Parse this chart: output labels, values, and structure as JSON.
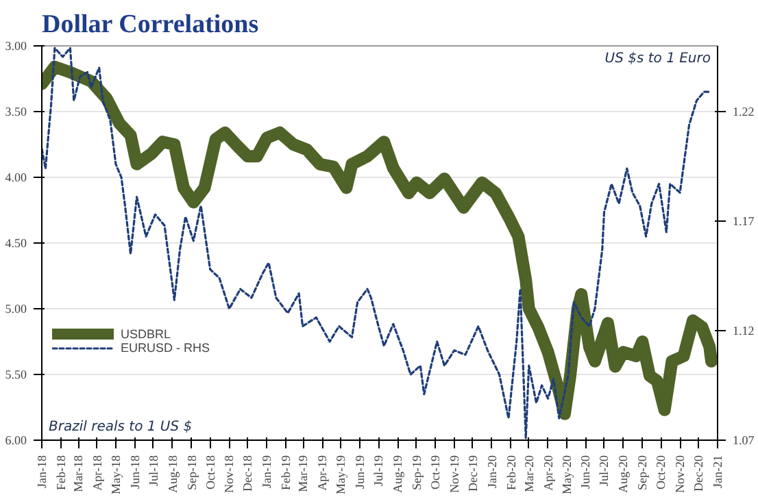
{
  "chart_data": {
    "type": "line",
    "title": "Dollar Correlations",
    "annotations": [
      "Brazil reals to 1 US $",
      "US $s to 1 Euro"
    ],
    "xlim": [
      "2018-01-01",
      "2021-01-01"
    ],
    "xticks": [
      {
        "value": "2018-01-01",
        "label": "Jan-18"
      },
      {
        "value": "2018-02-01",
        "label": "Feb-18"
      },
      {
        "value": "2018-03-01",
        "label": "Mar-18"
      },
      {
        "value": "2018-04-01",
        "label": "Apr-18"
      },
      {
        "value": "2018-05-01",
        "label": "May-18"
      },
      {
        "value": "2018-06-01",
        "label": "Jun-18"
      },
      {
        "value": "2018-07-01",
        "label": "Jul-18"
      },
      {
        "value": "2018-08-01",
        "label": "Aug-18"
      },
      {
        "value": "2018-09-01",
        "label": "Sep-18"
      },
      {
        "value": "2018-10-01",
        "label": "Oct-18"
      },
      {
        "value": "2018-11-01",
        "label": "Nov-18"
      },
      {
        "value": "2018-12-01",
        "label": "Dec-18"
      },
      {
        "value": "2019-01-01",
        "label": "Jan-19"
      },
      {
        "value": "2019-02-01",
        "label": "Feb-19"
      },
      {
        "value": "2019-03-01",
        "label": "Mar-19"
      },
      {
        "value": "2019-04-01",
        "label": "Apr-19"
      },
      {
        "value": "2019-05-01",
        "label": "May-19"
      },
      {
        "value": "2019-06-01",
        "label": "Jun-19"
      },
      {
        "value": "2019-07-01",
        "label": "Jul-19"
      },
      {
        "value": "2019-08-01",
        "label": "Aug-19"
      },
      {
        "value": "2019-09-01",
        "label": "Sep-19"
      },
      {
        "value": "2019-10-01",
        "label": "Oct-19"
      },
      {
        "value": "2019-11-01",
        "label": "Nov-19"
      },
      {
        "value": "2019-12-01",
        "label": "Dec-19"
      },
      {
        "value": "2020-01-01",
        "label": "Jan-20"
      },
      {
        "value": "2020-02-01",
        "label": "Feb-20"
      },
      {
        "value": "2020-03-01",
        "label": "Mar-20"
      },
      {
        "value": "2020-04-01",
        "label": "Apr-20"
      },
      {
        "value": "2020-05-01",
        "label": "May-20"
      },
      {
        "value": "2020-06-01",
        "label": "Jun-20"
      },
      {
        "value": "2020-07-01",
        "label": "Jul-20"
      },
      {
        "value": "2020-08-01",
        "label": "Aug-20"
      },
      {
        "value": "2020-09-01",
        "label": "Sep-20"
      },
      {
        "value": "2020-10-01",
        "label": "Oct-20"
      },
      {
        "value": "2020-11-01",
        "label": "Nov-20"
      },
      {
        "value": "2020-12-01",
        "label": "Dec-20"
      },
      {
        "value": "2021-01-01",
        "label": "Jan-21"
      }
    ],
    "ylim": [
      6.0,
      3.0
    ],
    "yticks": [
      {
        "value": 3.0,
        "label": "3.00"
      },
      {
        "value": 3.5,
        "label": "3.50"
      },
      {
        "value": 4.0,
        "label": "4.00"
      },
      {
        "value": 4.5,
        "label": "4.50"
      },
      {
        "value": 5.0,
        "label": "5.00"
      },
      {
        "value": 5.5,
        "label": "5.50"
      },
      {
        "value": 6.0,
        "label": "6.00"
      }
    ],
    "y2lim": [
      1.07,
      1.25
    ],
    "y2ticks": [
      1.07,
      1.12,
      1.17,
      1.22
    ],
    "grid": "y",
    "legend": "left",
    "series": [
      {
        "name": "USDBRL",
        "color": "#4f6228",
        "line_style": "solid",
        "x": [
          "2018-01-01",
          "2018-01-22",
          "2018-02-16",
          "2018-03-22",
          "2018-04-16",
          "2018-05-07",
          "2018-05-25",
          "2018-06-04",
          "2018-06-28",
          "2018-07-16",
          "2018-08-04",
          "2018-08-19",
          "2018-09-04",
          "2018-09-22",
          "2018-10-10",
          "2018-10-25",
          "2018-11-16",
          "2018-12-01",
          "2018-12-16",
          "2019-01-01",
          "2019-01-22",
          "2019-02-13",
          "2019-03-07",
          "2019-03-28",
          "2019-04-19",
          "2019-05-10",
          "2019-05-19",
          "2019-06-13",
          "2019-07-10",
          "2019-07-25",
          "2019-08-19",
          "2019-09-01",
          "2019-09-22",
          "2019-10-16",
          "2019-11-16",
          "2019-12-16",
          "2020-01-07",
          "2020-01-28",
          "2020-02-13",
          "2020-02-25",
          "2020-03-01",
          "2020-03-16",
          "2020-04-01",
          "2020-04-16",
          "2020-04-28",
          "2020-05-07",
          "2020-05-19",
          "2020-05-25",
          "2020-06-07",
          "2020-06-16",
          "2020-07-07",
          "2020-07-19",
          "2020-08-01",
          "2020-08-22",
          "2020-09-01",
          "2020-09-13",
          "2020-09-25",
          "2020-10-07",
          "2020-10-19",
          "2020-11-07",
          "2020-11-22",
          "2020-12-07",
          "2020-12-19",
          "2020-12-22"
        ],
        "values": [
          3.29,
          3.16,
          3.2,
          3.27,
          3.4,
          3.59,
          3.68,
          3.9,
          3.82,
          3.73,
          3.75,
          4.08,
          4.19,
          4.08,
          3.71,
          3.66,
          3.77,
          3.84,
          3.84,
          3.7,
          3.66,
          3.75,
          3.79,
          3.9,
          3.92,
          4.08,
          3.9,
          3.84,
          3.73,
          3.93,
          4.12,
          4.04,
          4.12,
          4.01,
          4.23,
          4.04,
          4.12,
          4.3,
          4.45,
          4.78,
          5.0,
          5.14,
          5.33,
          5.58,
          5.8,
          5.51,
          5.0,
          4.89,
          5.29,
          5.4,
          5.11,
          5.44,
          5.33,
          5.36,
          5.25,
          5.51,
          5.55,
          5.77,
          5.4,
          5.36,
          5.09,
          5.14,
          5.29,
          5.4
        ]
      },
      {
        "name": "EURUSD - RHS",
        "color": "#1f3d7a",
        "line_style": "dashed",
        "axis": "y2",
        "x": [
          "2018-01-01",
          "2018-01-07",
          "2018-01-16",
          "2018-01-22",
          "2018-02-04",
          "2018-02-16",
          "2018-02-22",
          "2018-03-04",
          "2018-03-16",
          "2018-03-22",
          "2018-04-04",
          "2018-04-10",
          "2018-04-22",
          "2018-05-01",
          "2018-05-10",
          "2018-05-16",
          "2018-05-25",
          "2018-06-04",
          "2018-06-19",
          "2018-07-04",
          "2018-07-19",
          "2018-08-04",
          "2018-08-13",
          "2018-08-22",
          "2018-09-04",
          "2018-09-16",
          "2018-10-01",
          "2018-10-16",
          "2018-11-01",
          "2018-11-19",
          "2018-12-07",
          "2018-12-25",
          "2019-01-04",
          "2019-01-16",
          "2019-02-04",
          "2019-02-22",
          "2019-02-28",
          "2019-03-22",
          "2019-04-13",
          "2019-04-28",
          "2019-05-19",
          "2019-05-28",
          "2019-06-13",
          "2019-06-19",
          "2019-07-01",
          "2019-07-10",
          "2019-07-25",
          "2019-08-10",
          "2019-08-22",
          "2019-09-07",
          "2019-09-13",
          "2019-10-04",
          "2019-10-16",
          "2019-11-01",
          "2019-11-19",
          "2019-12-10",
          "2019-12-25",
          "2020-01-13",
          "2020-01-28",
          "2020-02-10",
          "2020-02-16",
          "2020-02-25",
          "2020-03-01",
          "2020-03-13",
          "2020-03-22",
          "2020-04-01",
          "2020-04-10",
          "2020-04-19",
          "2020-05-04",
          "2020-05-13",
          "2020-05-25",
          "2020-06-07",
          "2020-06-16",
          "2020-06-28",
          "2020-07-01",
          "2020-07-13",
          "2020-07-25",
          "2020-08-07",
          "2020-08-16",
          "2020-08-28",
          "2020-09-07",
          "2020-09-16",
          "2020-09-28",
          "2020-10-10",
          "2020-10-16",
          "2020-11-01",
          "2020-11-16",
          "2020-11-28",
          "2020-12-10",
          "2020-12-19"
        ],
        "values": [
          1.203,
          1.194,
          1.223,
          1.249,
          1.245,
          1.249,
          1.225,
          1.236,
          1.238,
          1.231,
          1.24,
          1.225,
          1.216,
          1.196,
          1.19,
          1.177,
          1.155,
          1.181,
          1.163,
          1.173,
          1.168,
          1.134,
          1.157,
          1.172,
          1.161,
          1.177,
          1.148,
          1.144,
          1.13,
          1.139,
          1.135,
          1.146,
          1.151,
          1.135,
          1.128,
          1.137,
          1.122,
          1.126,
          1.115,
          1.122,
          1.117,
          1.133,
          1.139,
          1.135,
          1.122,
          1.113,
          1.123,
          1.111,
          1.1,
          1.104,
          1.091,
          1.115,
          1.104,
          1.111,
          1.109,
          1.122,
          1.111,
          1.1,
          1.08,
          1.115,
          1.139,
          1.071,
          1.104,
          1.087,
          1.095,
          1.089,
          1.098,
          1.08,
          1.1,
          1.133,
          1.126,
          1.122,
          1.13,
          1.157,
          1.174,
          1.187,
          1.178,
          1.194,
          1.183,
          1.177,
          1.163,
          1.178,
          1.187,
          1.165,
          1.187,
          1.183,
          1.214,
          1.225,
          1.229,
          1.229
        ]
      }
    ]
  }
}
